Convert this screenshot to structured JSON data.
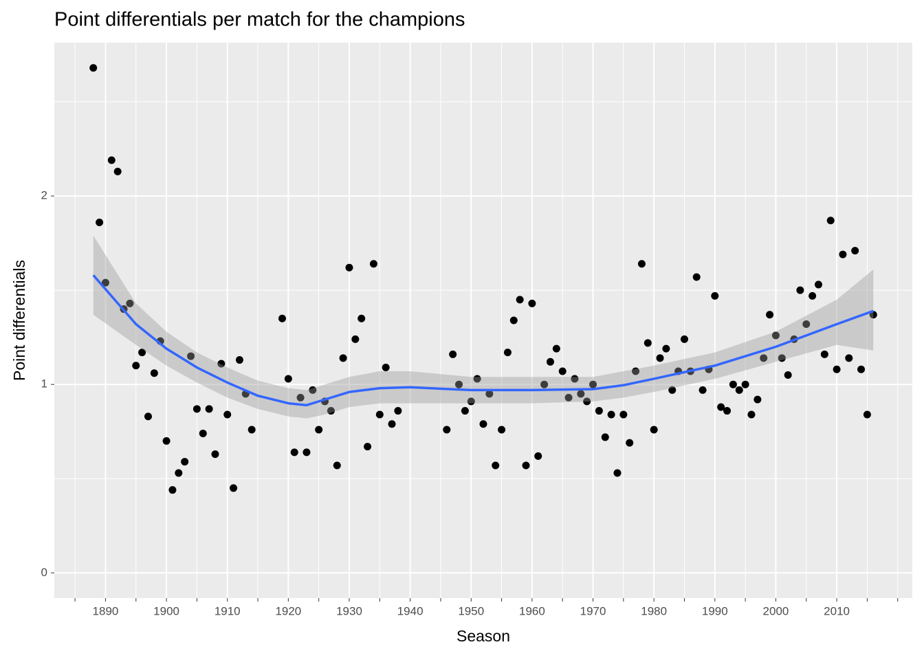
{
  "chart_data": {
    "type": "scatter",
    "title": "Point differentials per match for the champions",
    "x_label": "Season",
    "y_label": "Point differentials",
    "x": [
      1888,
      1889,
      1890,
      1891,
      1892,
      1893,
      1894,
      1895,
      1896,
      1897,
      1898,
      1899,
      1900,
      1901,
      1902,
      1903,
      1904,
      1905,
      1906,
      1907,
      1908,
      1909,
      1910,
      1911,
      1912,
      1913,
      1914,
      1919,
      1920,
      1921,
      1922,
      1923,
      1924,
      1925,
      1926,
      1927,
      1928,
      1929,
      1930,
      1931,
      1932,
      1933,
      1934,
      1935,
      1936,
      1937,
      1938,
      1946,
      1947,
      1948,
      1949,
      1950,
      1951,
      1952,
      1953,
      1954,
      1955,
      1956,
      1957,
      1958,
      1959,
      1960,
      1961,
      1962,
      1963,
      1964,
      1965,
      1966,
      1967,
      1968,
      1969,
      1970,
      1971,
      1972,
      1973,
      1974,
      1975,
      1976,
      1977,
      1978,
      1979,
      1980,
      1981,
      1982,
      1983,
      1984,
      1985,
      1986,
      1987,
      1988,
      1989,
      1990,
      1991,
      1992,
      1993,
      1994,
      1995,
      1996,
      1997,
      1998,
      1999,
      2000,
      2001,
      2002,
      2003,
      2004,
      2005,
      2006,
      2007,
      2008,
      2009,
      2010,
      2011,
      2012,
      2013,
      2014,
      2015,
      2016
    ],
    "values": [
      2.68,
      1.86,
      1.54,
      2.19,
      2.13,
      1.4,
      1.43,
      1.1,
      1.17,
      0.83,
      1.06,
      1.23,
      0.7,
      0.44,
      0.53,
      0.59,
      1.15,
      0.87,
      0.74,
      0.87,
      0.63,
      1.11,
      0.84,
      0.45,
      1.13,
      0.95,
      0.76,
      1.35,
      1.03,
      0.64,
      0.93,
      0.64,
      0.97,
      0.76,
      0.91,
      0.86,
      0.57,
      1.14,
      1.62,
      1.24,
      1.35,
      0.67,
      1.64,
      0.84,
      1.09,
      0.79,
      0.86,
      0.76,
      1.16,
      1.0,
      0.86,
      0.91,
      1.03,
      0.79,
      0.95,
      0.57,
      0.76,
      1.17,
      1.34,
      1.45,
      0.57,
      1.43,
      0.62,
      1.0,
      1.12,
      1.19,
      1.07,
      0.93,
      1.03,
      0.95,
      0.91,
      1.0,
      0.86,
      0.72,
      0.84,
      0.53,
      0.84,
      0.69,
      1.07,
      1.64,
      1.22,
      0.76,
      1.14,
      1.19,
      0.97,
      1.07,
      1.24,
      1.07,
      1.57,
      0.97,
      1.08,
      1.47,
      0.88,
      0.86,
      1.0,
      0.97,
      1.0,
      0.84,
      0.92,
      1.14,
      1.37,
      1.26,
      1.14,
      1.05,
      1.24,
      1.5,
      1.32,
      1.47,
      1.53,
      1.16,
      1.87,
      1.08,
      1.69,
      1.14,
      1.71,
      1.08,
      0.84,
      1.37
    ],
    "color": "#000000",
    "smooth": {
      "color": "#3366ff",
      "band_color": "#999999",
      "x": [
        1888,
        1895,
        1900,
        1905,
        1910,
        1915,
        1920,
        1923,
        1926,
        1930,
        1935,
        1940,
        1950,
        1960,
        1970,
        1975,
        1980,
        1990,
        2000,
        2010,
        2016
      ],
      "fit": [
        1.58,
        1.32,
        1.19,
        1.09,
        1.01,
        0.94,
        0.9,
        0.89,
        0.92,
        0.96,
        0.98,
        0.985,
        0.97,
        0.97,
        0.975,
        0.996,
        1.03,
        1.1,
        1.2,
        1.32,
        1.39
      ],
      "upper": [
        1.79,
        1.43,
        1.28,
        1.17,
        1.09,
        1.02,
        0.98,
        0.97,
        1.0,
        1.04,
        1.07,
        1.07,
        1.04,
        1.04,
        1.04,
        1.07,
        1.1,
        1.17,
        1.28,
        1.45,
        1.61
      ],
      "lower": [
        1.37,
        1.21,
        1.1,
        1.01,
        0.93,
        0.87,
        0.83,
        0.82,
        0.84,
        0.88,
        0.9,
        0.9,
        0.9,
        0.9,
        0.91,
        0.93,
        0.96,
        1.03,
        1.12,
        1.21,
        1.18
      ]
    },
    "xlim": [
      1881.6,
      2022.4
    ],
    "ylim": [
      -0.134,
      2.814
    ],
    "xticks": [
      1890,
      1900,
      1910,
      1920,
      1930,
      1940,
      1950,
      1960,
      1970,
      1980,
      1990,
      2000,
      2010
    ],
    "xminor_ticks": [
      1885,
      1895,
      1905,
      1915,
      1925,
      1935,
      1945,
      1955,
      1965,
      1975,
      1985,
      1995,
      2005,
      2015,
      2020
    ],
    "yticks": [
      0,
      1,
      2
    ],
    "yminor_ticks": [
      0.5,
      1.5,
      2.5
    ],
    "grid": true
  }
}
